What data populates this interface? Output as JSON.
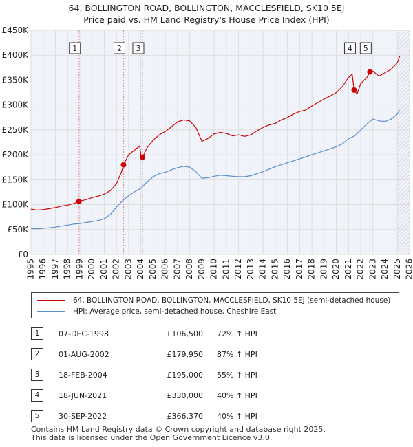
{
  "title_line1": "64, BOLLINGTON ROAD, BOLLINGTON, MACCLESFIELD, SK10 5EJ",
  "title_line2": "Price paid vs. HM Land Registry's House Price Index (HPI)",
  "colors": {
    "price": "#cc0000",
    "hpi": "#5b8dc9",
    "grid": "#dddddd",
    "plot_bg": "#f0f4fa",
    "vline": "#e08a8a"
  },
  "chart_data": {
    "type": "line",
    "ylim": [
      0,
      450000
    ],
    "xlim": [
      1995,
      2026
    ],
    "y_ticks": [
      {
        "value": 0,
        "label": "£0"
      },
      {
        "value": 50000,
        "label": "£50K"
      },
      {
        "value": 100000,
        "label": "£100K"
      },
      {
        "value": 150000,
        "label": "£150K"
      },
      {
        "value": 200000,
        "label": "£200K"
      },
      {
        "value": 250000,
        "label": "£250K"
      },
      {
        "value": 300000,
        "label": "£300K"
      },
      {
        "value": 350000,
        "label": "£350K"
      },
      {
        "value": 400000,
        "label": "£400K"
      },
      {
        "value": 450000,
        "label": "£450K"
      }
    ],
    "x_ticks": [
      "1995",
      "1996",
      "1997",
      "1998",
      "1999",
      "2000",
      "2001",
      "2002",
      "2003",
      "2004",
      "2005",
      "2006",
      "2007",
      "2008",
      "2009",
      "2010",
      "2011",
      "2012",
      "2013",
      "2014",
      "2015",
      "2016",
      "2017",
      "2018",
      "2019",
      "2020",
      "2021",
      "2022",
      "2023",
      "2024",
      "2025",
      "2026"
    ],
    "hatch_from": 2025.0,
    "series": [
      {
        "name": "64, BOLLINGTON ROAD, BOLLINGTON, MACCLESFIELD, SK10 5EJ (semi-detached house)",
        "x": [
          1995.0,
          1995.5,
          1996.0,
          1996.5,
          1997.0,
          1997.5,
          1998.0,
          1998.5,
          1998.93,
          1999.5,
          2000.0,
          2000.5,
          2001.0,
          2001.5,
          2002.0,
          2002.4,
          2002.58,
          2003.0,
          2003.5,
          2003.9,
          2004.0,
          2004.13,
          2004.5,
          2005.0,
          2005.5,
          2006.0,
          2006.5,
          2007.0,
          2007.5,
          2008.0,
          2008.5,
          2009.0,
          2009.5,
          2010.0,
          2010.5,
          2011.0,
          2011.5,
          2012.0,
          2012.5,
          2013.0,
          2013.5,
          2014.0,
          2014.5,
          2015.0,
          2015.5,
          2016.0,
          2016.5,
          2017.0,
          2017.5,
          2018.0,
          2018.5,
          2019.0,
          2019.5,
          2020.0,
          2020.5,
          2021.0,
          2021.3,
          2021.46,
          2021.7,
          2022.0,
          2022.5,
          2022.75,
          2023.0,
          2023.5,
          2024.0,
          2024.5,
          2025.0,
          2025.2
        ],
        "y": [
          91000,
          89000,
          90000,
          92000,
          94000,
          97000,
          99000,
          102000,
          106500,
          110000,
          114000,
          117000,
          121000,
          128000,
          142000,
          165000,
          179950,
          200000,
          210000,
          218000,
          200000,
          195000,
          214000,
          229000,
          240000,
          247000,
          256000,
          266000,
          270000,
          268000,
          255000,
          227000,
          233000,
          242000,
          245000,
          243000,
          238000,
          240000,
          237000,
          240000,
          248000,
          255000,
          260000,
          263000,
          270000,
          275000,
          282000,
          287000,
          290000,
          298000,
          305000,
          312000,
          318000,
          325000,
          337000,
          355000,
          362000,
          330000,
          322000,
          343000,
          355000,
          366370,
          368000,
          358000,
          365000,
          372000,
          385000,
          398000
        ]
      },
      {
        "name": "HPI: Average price, semi-detached house, Cheshire East",
        "x": [
          1995.0,
          1995.5,
          1996.0,
          1996.5,
          1997.0,
          1997.5,
          1998.0,
          1998.5,
          1999.0,
          1999.5,
          2000.0,
          2000.5,
          2001.0,
          2001.5,
          2002.0,
          2002.5,
          2003.0,
          2003.5,
          2004.0,
          2004.5,
          2005.0,
          2005.5,
          2006.0,
          2006.5,
          2007.0,
          2007.5,
          2008.0,
          2008.5,
          2009.0,
          2009.5,
          2010.0,
          2010.5,
          2011.0,
          2011.5,
          2012.0,
          2012.5,
          2013.0,
          2013.5,
          2014.0,
          2014.5,
          2015.0,
          2015.5,
          2016.0,
          2016.5,
          2017.0,
          2017.5,
          2018.0,
          2018.5,
          2019.0,
          2019.5,
          2020.0,
          2020.5,
          2021.0,
          2021.5,
          2022.0,
          2022.5,
          2023.0,
          2023.5,
          2024.0,
          2024.5,
          2025.0,
          2025.2
        ],
        "y": [
          52000,
          51500,
          52500,
          53500,
          55000,
          57000,
          59000,
          61000,
          62000,
          64000,
          66000,
          68000,
          72000,
          80000,
          95000,
          108000,
          118000,
          126000,
          133000,
          145000,
          156000,
          162000,
          165000,
          170000,
          174000,
          177000,
          175000,
          166000,
          153000,
          154000,
          157000,
          159000,
          158000,
          157000,
          156000,
          156000,
          158000,
          162000,
          166000,
          171000,
          176000,
          180000,
          184000,
          188000,
          192000,
          196000,
          200000,
          204000,
          208000,
          212000,
          216000,
          222000,
          232000,
          238000,
          250000,
          262000,
          272000,
          268000,
          267000,
          272000,
          282000,
          290000
        ]
      }
    ],
    "markers": [
      {
        "label": "1",
        "x": 1998.93,
        "y": 106500
      },
      {
        "label": "2",
        "x": 2002.58,
        "y": 179950
      },
      {
        "label": "3",
        "x": 2004.13,
        "y": 195000
      },
      {
        "label": "4",
        "x": 2021.46,
        "y": 330000
      },
      {
        "label": "5",
        "x": 2022.75,
        "y": 366370
      }
    ]
  },
  "legend": {
    "price_label": "64, BOLLINGTON ROAD, BOLLINGTON, MACCLESFIELD, SK10 5EJ (semi-detached house)",
    "hpi_label": "HPI: Average price, semi-detached house, Cheshire East"
  },
  "sales": [
    {
      "num": "1",
      "date": "07-DEC-1998",
      "price": "£106,500",
      "hpi": "72% ↑ HPI"
    },
    {
      "num": "2",
      "date": "01-AUG-2002",
      "price": "£179,950",
      "hpi": "87% ↑ HPI"
    },
    {
      "num": "3",
      "date": "18-FEB-2004",
      "price": "£195,000",
      "hpi": "55% ↑ HPI"
    },
    {
      "num": "4",
      "date": "18-JUN-2021",
      "price": "£330,000",
      "hpi": "40% ↑ HPI"
    },
    {
      "num": "5",
      "date": "30-SEP-2022",
      "price": "£366,370",
      "hpi": "40% ↑ HPI"
    }
  ],
  "footer_line1": "Contains HM Land Registry data © Crown copyright and database right 2025.",
  "footer_line2": "This data is licensed under the Open Government Licence v3.0."
}
